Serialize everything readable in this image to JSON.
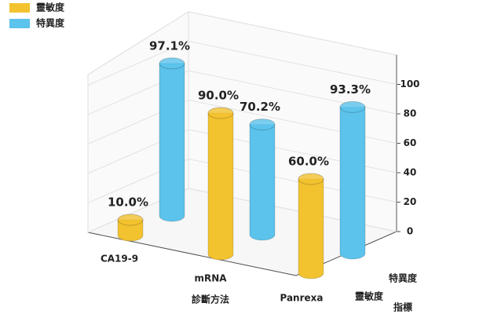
{
  "chart_data": {
    "type": "bar3d",
    "categories": [
      "CA19-9",
      "mRNA",
      "Panrexa"
    ],
    "series": [
      {
        "name": "靈敏度",
        "color": "#f2c22f",
        "values": [
          10.0,
          90.0,
          60.0
        ],
        "value_labels": [
          "10.0%",
          "90.0%",
          "60.0%"
        ]
      },
      {
        "name": "特異度",
        "color": "#5bc3ec",
        "values": [
          97.1,
          70.2,
          93.3
        ],
        "value_labels": [
          "97.1%",
          "70.2%",
          "93.3%"
        ]
      }
    ],
    "xlabel": "診斷方法",
    "depth_label": "指標",
    "ylim": [
      0,
      120
    ],
    "yticks": [
      0,
      20,
      40,
      60,
      80,
      100
    ],
    "grid": true
  }
}
